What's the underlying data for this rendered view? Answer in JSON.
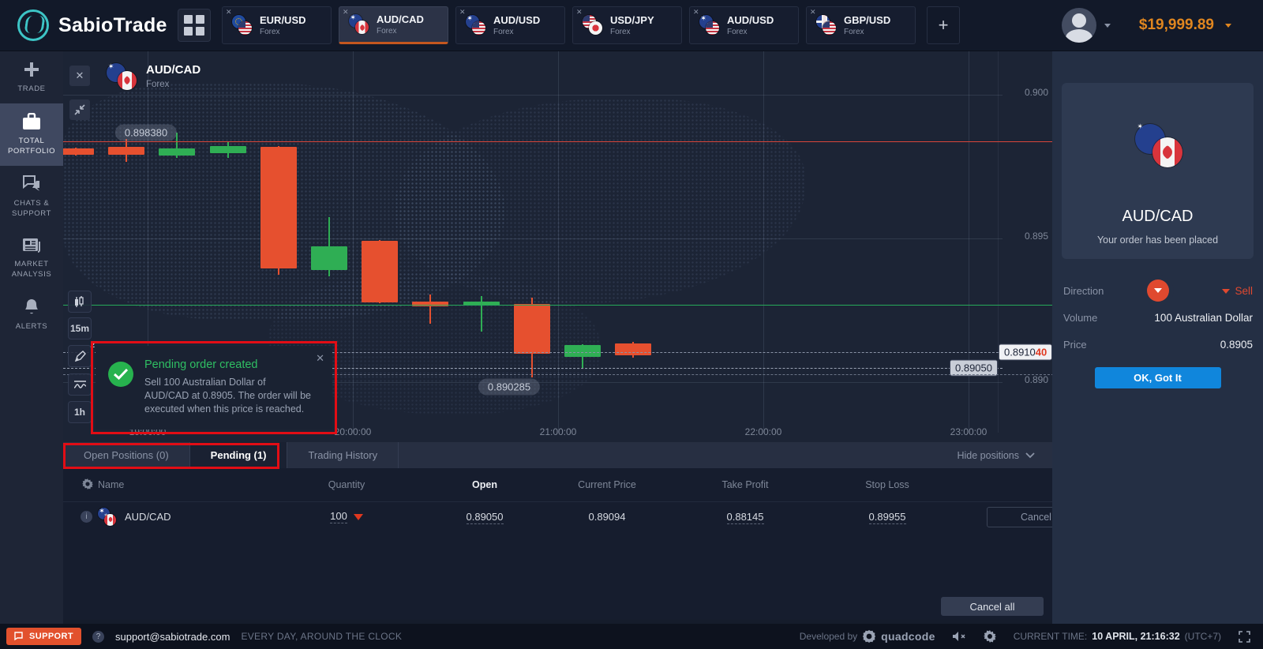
{
  "topbar": {
    "brand": "SabioTrade",
    "add_tab_label": "+",
    "balance": "$19,999.89",
    "tabs": [
      {
        "pair": "EUR/USD",
        "type": "Forex",
        "flags": [
          "eu",
          "us"
        ],
        "active": false
      },
      {
        "pair": "AUD/CAD",
        "type": "Forex",
        "flags": [
          "au",
          "ca"
        ],
        "active": true
      },
      {
        "pair": "AUD/USD",
        "type": "Forex",
        "flags": [
          "au",
          "us"
        ],
        "active": false
      },
      {
        "pair": "USD/JPY",
        "type": "Forex",
        "flags": [
          "us",
          "jp"
        ],
        "active": false
      },
      {
        "pair": "AUD/USD",
        "type": "Forex",
        "flags": [
          "au",
          "us"
        ],
        "active": false
      },
      {
        "pair": "GBP/USD",
        "type": "Forex",
        "flags": [
          "gb",
          "us"
        ],
        "active": false
      }
    ]
  },
  "sidebar": {
    "items": [
      {
        "label": "TRADE",
        "icon": "plus-icon",
        "active": false
      },
      {
        "label": "TOTAL PORTFOLIO",
        "icon": "briefcase-icon",
        "active": true
      },
      {
        "label": "CHATS & SUPPORT",
        "icon": "chat-icon",
        "active": false
      },
      {
        "label": "MARKET ANALYSIS",
        "icon": "news-icon",
        "active": false
      },
      {
        "label": "ALERTS",
        "icon": "bell-icon",
        "active": false
      }
    ]
  },
  "chart_header": {
    "instrument": "AUD/CAD",
    "category": "Forex"
  },
  "chart_tools": {
    "timeframe_1": "15m",
    "drawing_badge": "2",
    "timeframe_2": "1h"
  },
  "chart_data": {
    "type": "candlestick",
    "instrument": "AUD/CAD",
    "timeframe": "15m",
    "x_labels": [
      "19:00:00",
      "20:00:00",
      "21:00:00",
      "22:00:00",
      "23:00:00"
    ],
    "y_ticks": [
      "0.900",
      "0.895",
      "0.890"
    ],
    "y_range": [
      0.889,
      0.9005
    ],
    "grid": true,
    "candles": [
      {
        "o": 0.89813,
        "h": 0.89815,
        "l": 0.89788,
        "c": 0.8979
      },
      {
        "o": 0.89819,
        "h": 0.89846,
        "l": 0.89766,
        "c": 0.89791
      },
      {
        "o": 0.89788,
        "h": 0.89868,
        "l": 0.8978,
        "c": 0.89813
      },
      {
        "o": 0.89797,
        "h": 0.89835,
        "l": 0.8978,
        "c": 0.89821
      },
      {
        "o": 0.89819,
        "h": 0.89822,
        "l": 0.89374,
        "c": 0.89396
      },
      {
        "o": 0.8939,
        "h": 0.89574,
        "l": 0.89368,
        "c": 0.89473
      },
      {
        "o": 0.89492,
        "h": 0.89494,
        "l": 0.89276,
        "c": 0.89278
      },
      {
        "o": 0.8928,
        "h": 0.89305,
        "l": 0.89203,
        "c": 0.89264
      },
      {
        "o": 0.89267,
        "h": 0.89299,
        "l": 0.89176,
        "c": 0.89281
      },
      {
        "o": 0.89272,
        "h": 0.89294,
        "l": 0.89017,
        "c": 0.89099
      },
      {
        "o": 0.89088,
        "h": 0.89131,
        "l": 0.89047,
        "c": 0.89129
      },
      {
        "o": 0.89134,
        "h": 0.8914,
        "l": 0.89085,
        "c": 0.89093
      }
    ],
    "lines": [
      {
        "price": 0.89838,
        "label": "0.898380",
        "style": "solid",
        "color": "#d8463a",
        "label_kind": "pill-left"
      },
      {
        "price": 0.8927,
        "label": "",
        "style": "solid",
        "color": "#26a95a",
        "label_kind": "none"
      },
      {
        "price": 0.89104,
        "label": "0.8910",
        "label_frac": "40",
        "style": "dashed",
        "color": "#8a93a6",
        "label_kind": "axis-current"
      },
      {
        "price": 0.8905,
        "label": "0.89050",
        "style": "dashed",
        "color": "#9aa3b4",
        "label_kind": "axis-plain"
      },
      {
        "price": 0.890285,
        "label": "0.890285",
        "style": "dashed",
        "color": "#6b7487",
        "label_kind": "pill-below"
      }
    ],
    "legend_position": "none",
    "colors": {
      "up": "#2fae54",
      "down": "#e6502f"
    }
  },
  "notification": {
    "title": "Pending order created",
    "body": "Sell 100 Australian Dollar of AUD/CAD at 0.8905. The order will be executed when this price is reached.",
    "close_label": "✕"
  },
  "positions": {
    "tabs": [
      {
        "label": "Open Positions (0)",
        "active": false
      },
      {
        "label": "Pending (1)",
        "active": true
      },
      {
        "label": "Trading History",
        "active": false
      }
    ],
    "hide_positions_label": "Hide positions",
    "columns": [
      "Name",
      "Quantity",
      "Open",
      "Current Price",
      "Take Profit",
      "Stop Loss"
    ],
    "rows": [
      {
        "name": "AUD/CAD",
        "flags": [
          "au",
          "ca"
        ],
        "quantity": "100",
        "open": "0.89050",
        "current_price": "0.89094",
        "take_profit": "0.88145",
        "stop_loss": "0.89955",
        "action": "Cancel"
      }
    ],
    "cancel_all_label": "Cancel all"
  },
  "order_panel": {
    "instrument": "AUD/CAD",
    "message": "Your order has been placed",
    "direction_label": "Direction",
    "direction_value": "Sell",
    "volume_label": "Volume",
    "volume_value": "100 Australian Dollar",
    "price_label": "Price",
    "price_value": "0.8905",
    "ok_label": "OK, Got It"
  },
  "footer": {
    "support_label": "SUPPORT",
    "email": "support@sabiotrade.com",
    "availability": "EVERY DAY, AROUND THE CLOCK",
    "developed_by": "Developed by",
    "developer": "quadcode",
    "current_time_label": "CURRENT TIME:",
    "current_time": "10 APRIL, 21:16:32",
    "timezone": "(UTC+7)"
  },
  "colors": {
    "accent_orange": "#e0861f",
    "tab_underline": "#c4571f",
    "candle_up": "#2fae54",
    "candle_down": "#e6502f",
    "ok_button": "#1086dc",
    "support_button": "#e2512d",
    "notification_green": "#2fbf63",
    "annotation_red": "#e20d15",
    "sell_red": "#e0492f"
  }
}
